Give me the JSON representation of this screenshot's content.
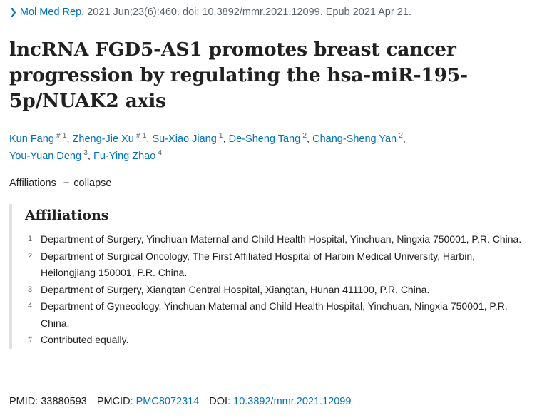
{
  "citation": {
    "chevron_icon": "chevron-right-icon",
    "chevron_glyph": "❯",
    "journal": "Mol Med Rep.",
    "details": " 2021 Jun;23(6):460. doi: 10.3892/mmr.2021.12099. Epub 2021 Apr 21."
  },
  "article": {
    "title": "lncRNA FGD5-AS1 promotes breast cancer progression by regulating the hsa-miR-195-5p/NUAK2 axis"
  },
  "authors": [
    {
      "name": "Kun Fang",
      "sup": "# 1",
      "sep": ", "
    },
    {
      "name": "Zheng-Jie Xu",
      "sup": "# 1",
      "sep": ", "
    },
    {
      "name": "Su-Xiao Jiang",
      "sup": "1",
      "sep": ", "
    },
    {
      "name": "De-Sheng Tang",
      "sup": "2",
      "sep": ", "
    },
    {
      "name": "Chang-Sheng Yan",
      "sup": "2",
      "sep": ","
    },
    {
      "name": "You-Yuan Deng",
      "sup": "3",
      "sep": ", "
    },
    {
      "name": "Fu-Ying Zhao",
      "sup": "4",
      "sep": ""
    }
  ],
  "affiliations_toggle": {
    "label": "Affiliations",
    "dash": "−",
    "action": "collapse"
  },
  "affiliations": {
    "heading": "Affiliations",
    "items": [
      {
        "num": "1",
        "text": "Department of Surgery, Yinchuan Maternal and Child Health Hospital, Yinchuan, Ningxia 750001, P.R. China."
      },
      {
        "num": "2",
        "text": "Department of Surgical Oncology, The First Affiliated Hospital of Harbin Medical University, Harbin, Heilongjiang 150001, P.R. China."
      },
      {
        "num": "3",
        "text": "Department of Surgery, Xiangtan Central Hospital, Xiangtan, Hunan 411100, P.R. China."
      },
      {
        "num": "4",
        "text": "Department of Gynecology, Yinchuan Maternal and Child Health Hospital, Yinchuan, Ningxia 750001, P.R. China."
      },
      {
        "num": "#",
        "text": "Contributed equally."
      }
    ]
  },
  "identifiers": {
    "pmid_label": "PMID: ",
    "pmid": "33880593",
    "pmcid_label": "PMCID: ",
    "pmcid": "PMC8072314",
    "doi_label": "DOI: ",
    "doi": "10.3892/mmr.2021.12099"
  },
  "colors": {
    "link": "#0071bc",
    "text": "#212121",
    "muted": "#5b616b",
    "border": "#dfe1e2"
  }
}
